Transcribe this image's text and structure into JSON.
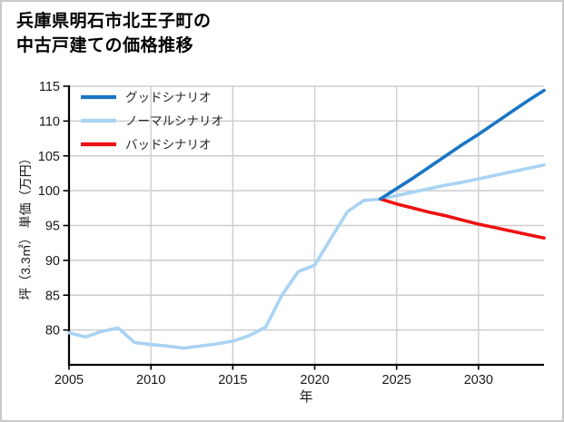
{
  "figure": {
    "title_line1": "兵庫県明石市北王子町の",
    "title_line2": "中古戸建ての価格推移"
  },
  "style": {
    "grid_color": "#cdcdcd",
    "spine_color": "#000000",
    "tick_label_color": "#1a1a1a",
    "legend_text_color": "#262626",
    "frame_color": "#c9c9c9",
    "background": "#ffffff"
  },
  "chart_data": {
    "type": "line",
    "title": "兵庫県明石市北王子町の中古戸建ての価格推移",
    "xlabel": "年",
    "ylabel": "坪（3.3㎡） 単価（万円）",
    "xlim": [
      2005,
      2034
    ],
    "ylim": [
      75,
      115
    ],
    "xticks": [
      2005,
      2010,
      2015,
      2020,
      2025,
      2030
    ],
    "yticks": [
      80,
      85,
      90,
      95,
      100,
      105,
      110,
      115
    ],
    "grid": true,
    "legend_position": "top-left",
    "series": [
      {
        "name": "グッドシナリオ",
        "slug": "good-scenario",
        "color": "#1a75c4",
        "x": [
          2024,
          2025,
          2026,
          2027,
          2028,
          2029,
          2030,
          2031,
          2032,
          2033,
          2034
        ],
        "values": [
          98.8,
          100.3,
          101.8,
          103.4,
          105.0,
          106.6,
          108.1,
          109.7,
          111.3,
          112.9,
          114.4
        ]
      },
      {
        "name": "ノーマルシナリオ",
        "slug": "normal-scenario",
        "color": "#a9d3f3",
        "x": [
          2005,
          2006,
          2007,
          2008,
          2009,
          2010,
          2011,
          2012,
          2013,
          2014,
          2015,
          2016,
          2017,
          2018,
          2019,
          2020,
          2021,
          2022,
          2023,
          2024,
          2025,
          2026,
          2027,
          2028,
          2029,
          2030,
          2031,
          2032,
          2033,
          2034
        ],
        "values": [
          79.6,
          79.0,
          79.8,
          80.3,
          78.2,
          77.9,
          77.7,
          77.4,
          77.7,
          78.0,
          78.4,
          79.2,
          80.4,
          85.0,
          88.4,
          89.3,
          93.2,
          97.0,
          98.6,
          98.8,
          99.3,
          99.8,
          100.3,
          100.8,
          101.2,
          101.7,
          102.2,
          102.7,
          103.2,
          103.7
        ]
      },
      {
        "name": "バッドシナリオ",
        "slug": "bad-scenario",
        "color": "#ee1111",
        "x": [
          2024,
          2025,
          2026,
          2027,
          2028,
          2029,
          2030,
          2031,
          2032,
          2033,
          2034
        ],
        "values": [
          98.8,
          98.1,
          97.5,
          96.9,
          96.4,
          95.8,
          95.2,
          94.7,
          94.2,
          93.7,
          93.2
        ]
      }
    ]
  }
}
